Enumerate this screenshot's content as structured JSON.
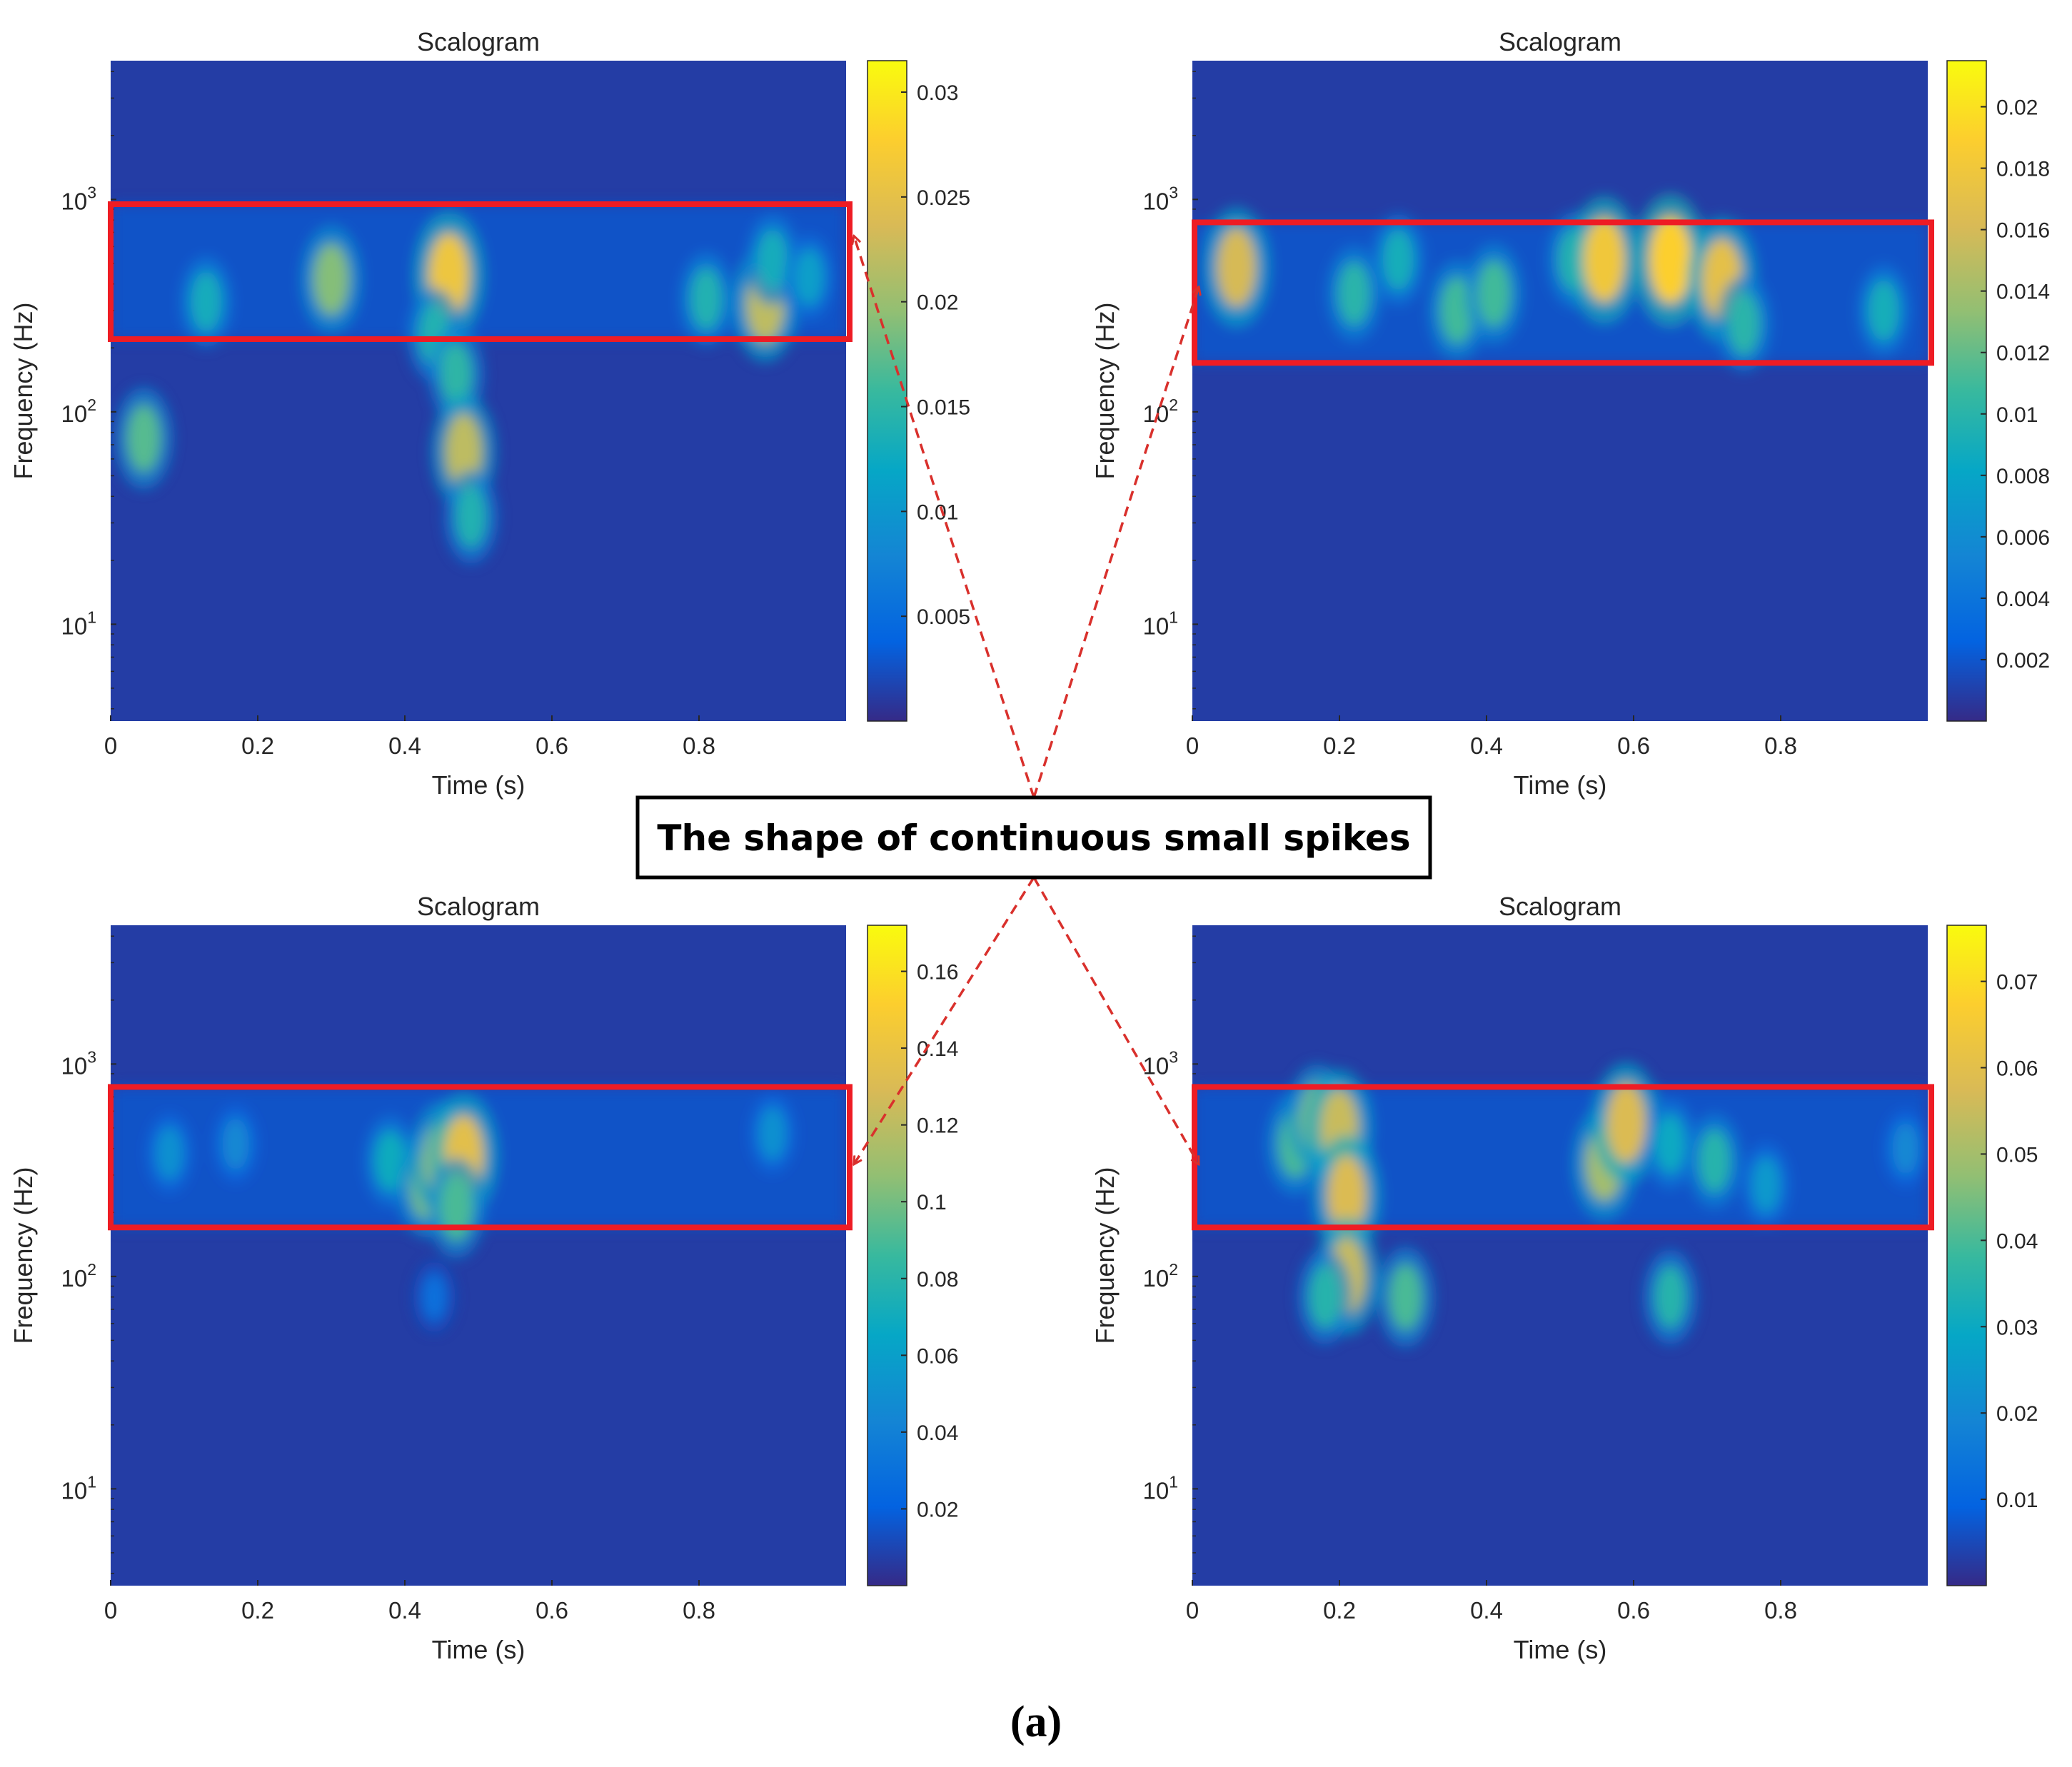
{
  "figure_label": "(a)",
  "annotation_text": "The shape of continuous small spikes",
  "colors": {
    "heat_background": "#3b2fa8",
    "highlight_box": "#ee1c24",
    "arrow": "#d9302c",
    "annotation_border": "#000000"
  },
  "chart_data": [
    {
      "type": "heatmap",
      "panel": "top-left",
      "title": "Scalogram",
      "xlabel": "Time (s)",
      "ylabel": "Frequency (Hz)",
      "xlim": [
        0,
        1
      ],
      "xticks": [
        0,
        0.2,
        0.4,
        0.6,
        0.8
      ],
      "xtick_labels": [
        "0",
        "0.2",
        "0.4",
        "0.6",
        "0.8"
      ],
      "yscale": "log",
      "ylim": [
        3.5,
        4500
      ],
      "yticks": [
        10,
        100,
        1000
      ],
      "ytick_labels": [
        "10",
        "10",
        "10"
      ],
      "ytick_exponents": [
        "1",
        "2",
        "3"
      ],
      "colorbar": {
        "min": 0,
        "max": 0.0315,
        "ticks": [
          0.005,
          0.01,
          0.015,
          0.02,
          0.025,
          0.03
        ],
        "tick_labels": [
          "0.005",
          "0.01",
          "0.015",
          "0.02",
          "0.025",
          "0.03"
        ]
      },
      "highlight_freq_range": [
        220,
        950
      ],
      "hotspots": [
        {
          "t": 0.045,
          "f": 75,
          "v": 0.017
        },
        {
          "t": 0.13,
          "f": 330,
          "v": 0.013
        },
        {
          "t": 0.3,
          "f": 420,
          "v": 0.019
        },
        {
          "t": 0.46,
          "f": 440,
          "v": 0.026
        },
        {
          "t": 0.44,
          "f": 230,
          "v": 0.014
        },
        {
          "t": 0.47,
          "f": 150,
          "v": 0.015
        },
        {
          "t": 0.48,
          "f": 65,
          "v": 0.022
        },
        {
          "t": 0.49,
          "f": 32,
          "v": 0.014
        },
        {
          "t": 0.81,
          "f": 340,
          "v": 0.014
        },
        {
          "t": 0.89,
          "f": 320,
          "v": 0.022
        },
        {
          "t": 0.9,
          "f": 520,
          "v": 0.013
        },
        {
          "t": 0.95,
          "f": 430,
          "v": 0.011
        }
      ]
    },
    {
      "type": "heatmap",
      "panel": "top-right",
      "title": "Scalogram",
      "xlabel": "Time (s)",
      "ylabel": "Frequency (Hz)",
      "xlim": [
        0,
        1
      ],
      "xticks": [
        0,
        0.2,
        0.4,
        0.6,
        0.8
      ],
      "xtick_labels": [
        "0",
        "0.2",
        "0.4",
        "0.6",
        "0.8"
      ],
      "yscale": "log",
      "ylim": [
        3.5,
        4500
      ],
      "yticks": [
        10,
        100,
        1000
      ],
      "ytick_labels": [
        "10",
        "10",
        "10"
      ],
      "ytick_exponents": [
        "1",
        "2",
        "3"
      ],
      "colorbar": {
        "min": 0,
        "max": 0.0215,
        "ticks": [
          0.002,
          0.004,
          0.006,
          0.008,
          0.01,
          0.012,
          0.014,
          0.016,
          0.018,
          0.02
        ],
        "tick_labels": [
          "0.002",
          "0.004",
          "0.006",
          "0.008",
          "0.01",
          "0.012",
          "0.014",
          "0.016",
          "0.018",
          "0.02"
        ]
      },
      "highlight_freq_range": [
        170,
        780
      ],
      "hotspots": [
        {
          "t": 0.06,
          "f": 480,
          "v": 0.016
        },
        {
          "t": 0.22,
          "f": 360,
          "v": 0.01
        },
        {
          "t": 0.28,
          "f": 520,
          "v": 0.009
        },
        {
          "t": 0.36,
          "f": 300,
          "v": 0.011
        },
        {
          "t": 0.41,
          "f": 360,
          "v": 0.011
        },
        {
          "t": 0.52,
          "f": 520,
          "v": 0.01
        },
        {
          "t": 0.56,
          "f": 520,
          "v": 0.018
        },
        {
          "t": 0.65,
          "f": 520,
          "v": 0.019
        },
        {
          "t": 0.72,
          "f": 420,
          "v": 0.017
        },
        {
          "t": 0.75,
          "f": 260,
          "v": 0.01
        },
        {
          "t": 0.94,
          "f": 300,
          "v": 0.009
        }
      ]
    },
    {
      "type": "heatmap",
      "panel": "bottom-left",
      "title": "Scalogram",
      "xlabel": "Time (s)",
      "ylabel": "Frequency (Hz)",
      "xlim": [
        0,
        1
      ],
      "xticks": [
        0,
        0.2,
        0.4,
        0.6,
        0.8
      ],
      "xtick_labels": [
        "0",
        "0.2",
        "0.4",
        "0.6",
        "0.8"
      ],
      "yscale": "log",
      "ylim": [
        3.5,
        4500
      ],
      "yticks": [
        10,
        100,
        1000
      ],
      "ytick_labels": [
        "10",
        "10",
        "10"
      ],
      "ytick_exponents": [
        "1",
        "2",
        "3"
      ],
      "colorbar": {
        "min": 0,
        "max": 0.172,
        "ticks": [
          0.02,
          0.04,
          0.06,
          0.08,
          0.1,
          0.12,
          0.14,
          0.16
        ],
        "tick_labels": [
          "0.02",
          "0.04",
          "0.06",
          "0.08",
          "0.1",
          "0.12",
          "0.14",
          "0.16"
        ]
      },
      "highlight_freq_range": [
        170,
        780
      ],
      "hotspots": [
        {
          "t": 0.08,
          "f": 380,
          "v": 0.05
        },
        {
          "t": 0.17,
          "f": 420,
          "v": 0.045
        },
        {
          "t": 0.38,
          "f": 350,
          "v": 0.07
        },
        {
          "t": 0.43,
          "f": 270,
          "v": 0.1
        },
        {
          "t": 0.45,
          "f": 360,
          "v": 0.11
        },
        {
          "t": 0.48,
          "f": 370,
          "v": 0.135
        },
        {
          "t": 0.47,
          "f": 210,
          "v": 0.09
        },
        {
          "t": 0.44,
          "f": 80,
          "v": 0.03
        },
        {
          "t": 0.9,
          "f": 470,
          "v": 0.05
        }
      ]
    },
    {
      "type": "heatmap",
      "panel": "bottom-right",
      "title": "Scalogram",
      "xlabel": "Time (s)",
      "ylabel": "Frequency (Hz)",
      "xlim": [
        0,
        1
      ],
      "xticks": [
        0,
        0.2,
        0.4,
        0.6,
        0.8
      ],
      "xtick_labels": [
        "0",
        "0.2",
        "0.4",
        "0.6",
        "0.8"
      ],
      "yscale": "log",
      "ylim": [
        3.5,
        4500
      ],
      "yticks": [
        10,
        100,
        1000
      ],
      "ytick_labels": [
        "10",
        "10",
        "10"
      ],
      "ytick_exponents": [
        "1",
        "2",
        "3"
      ],
      "colorbar": {
        "min": 0,
        "max": 0.0765,
        "ticks": [
          0.01,
          0.02,
          0.03,
          0.04,
          0.05,
          0.06,
          0.07
        ],
        "tick_labels": [
          "0.01",
          "0.02",
          "0.03",
          "0.04",
          "0.05",
          "0.06",
          "0.07"
        ]
      },
      "highlight_freq_range": [
        170,
        780
      ],
      "hotspots": [
        {
          "t": 0.14,
          "f": 420,
          "v": 0.04
        },
        {
          "t": 0.17,
          "f": 560,
          "v": 0.045
        },
        {
          "t": 0.2,
          "f": 500,
          "v": 0.055
        },
        {
          "t": 0.21,
          "f": 240,
          "v": 0.058
        },
        {
          "t": 0.21,
          "f": 100,
          "v": 0.055
        },
        {
          "t": 0.18,
          "f": 80,
          "v": 0.035
        },
        {
          "t": 0.29,
          "f": 80,
          "v": 0.04
        },
        {
          "t": 0.56,
          "f": 340,
          "v": 0.05
        },
        {
          "t": 0.59,
          "f": 530,
          "v": 0.058
        },
        {
          "t": 0.65,
          "f": 420,
          "v": 0.03
        },
        {
          "t": 0.71,
          "f": 350,
          "v": 0.035
        },
        {
          "t": 0.65,
          "f": 80,
          "v": 0.035
        },
        {
          "t": 0.78,
          "f": 270,
          "v": 0.025
        },
        {
          "t": 0.97,
          "f": 400,
          "v": 0.02
        }
      ]
    }
  ]
}
